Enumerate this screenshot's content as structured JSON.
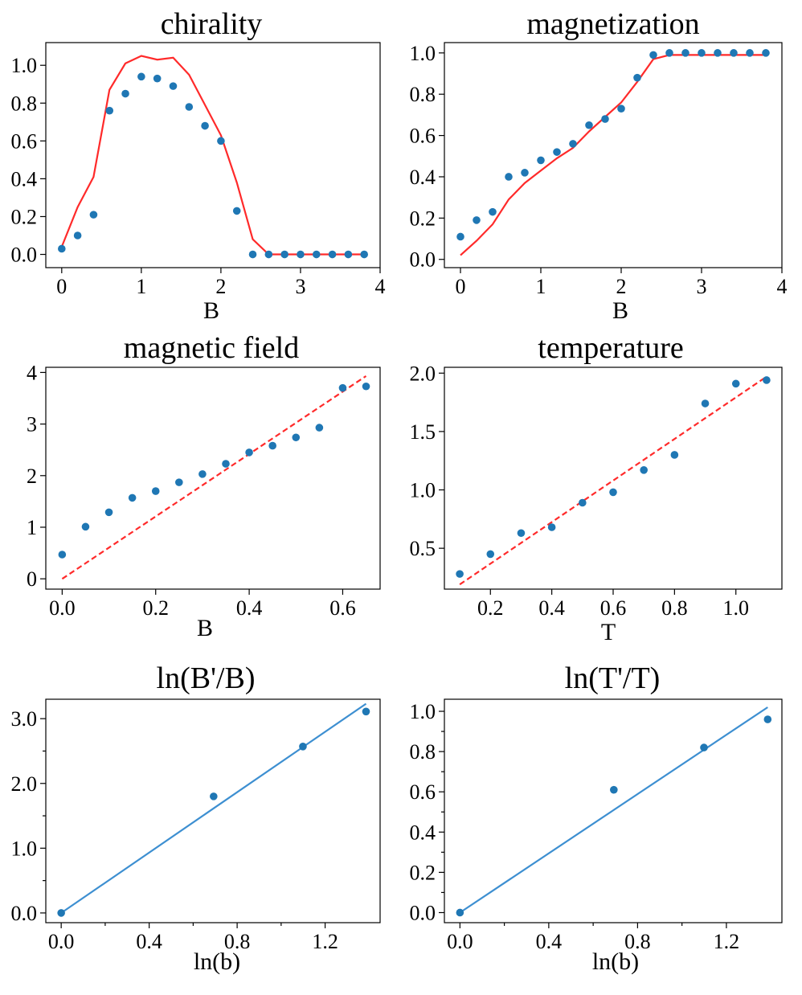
{
  "chart_data": [
    {
      "type": "scatter",
      "title": "chirality",
      "xlabel": "B",
      "ylabel": "",
      "xlim": [
        -0.2,
        4.0
      ],
      "ylim": [
        -0.07,
        1.12
      ],
      "xticks": [
        0,
        1,
        2,
        3,
        4
      ],
      "xtick_labels": [
        "0",
        "1",
        "2",
        "3",
        "4"
      ],
      "yticks": [
        0.0,
        0.2,
        0.4,
        0.6,
        0.8,
        1.0
      ],
      "ytick_labels": [
        "0.0",
        "0.2",
        "0.4",
        "0.6",
        "0.8",
        "1.0"
      ],
      "series": [
        {
          "name": "data",
          "kind": "points",
          "color": "#1f77b4",
          "x": [
            0,
            0.2,
            0.4,
            0.6,
            0.8,
            1.0,
            1.2,
            1.4,
            1.6,
            1.8,
            2.0,
            2.2,
            2.4,
            2.6,
            2.8,
            3.0,
            3.2,
            3.4,
            3.6,
            3.8
          ],
          "y": [
            0.03,
            0.1,
            0.21,
            0.76,
            0.85,
            0.94,
            0.93,
            0.89,
            0.78,
            0.68,
            0.6,
            0.23,
            0.0,
            0.0,
            0.0,
            0.0,
            0.0,
            0.0,
            0.0,
            0.0
          ]
        },
        {
          "name": "fit",
          "kind": "line",
          "color": "#ff2a2a",
          "x": [
            0,
            0.2,
            0.4,
            0.6,
            0.8,
            1.0,
            1.2,
            1.4,
            1.6,
            1.8,
            2.0,
            2.2,
            2.4,
            2.6,
            2.8,
            3.0,
            3.2,
            3.4,
            3.6,
            3.8
          ],
          "y": [
            0.04,
            0.25,
            0.41,
            0.87,
            1.01,
            1.05,
            1.03,
            1.04,
            0.95,
            0.79,
            0.63,
            0.38,
            0.08,
            0.0,
            0.0,
            0.0,
            0.0,
            0.0,
            0.0,
            0.0
          ]
        }
      ]
    },
    {
      "type": "scatter",
      "title": "magnetization",
      "xlabel": "B",
      "ylabel": "",
      "xlim": [
        -0.2,
        4.0
      ],
      "ylim": [
        -0.04,
        1.05
      ],
      "xticks": [
        0,
        1,
        2,
        3,
        4
      ],
      "xtick_labels": [
        "0",
        "1",
        "2",
        "3",
        "4"
      ],
      "yticks": [
        0.0,
        0.2,
        0.4,
        0.6,
        0.8,
        1.0
      ],
      "ytick_labels": [
        "0.0",
        "0.2",
        "0.4",
        "0.6",
        "0.8",
        "1.0"
      ],
      "series": [
        {
          "name": "data",
          "kind": "points",
          "color": "#1f77b4",
          "x": [
            0,
            0.2,
            0.4,
            0.6,
            0.8,
            1.0,
            1.2,
            1.4,
            1.6,
            1.8,
            2.0,
            2.2,
            2.4,
            2.6,
            2.8,
            3.0,
            3.2,
            3.4,
            3.6,
            3.8
          ],
          "y": [
            0.11,
            0.19,
            0.23,
            0.4,
            0.42,
            0.48,
            0.52,
            0.56,
            0.65,
            0.68,
            0.73,
            0.88,
            0.99,
            1.0,
            1.0,
            1.0,
            1.0,
            1.0,
            1.0,
            1.0
          ]
        },
        {
          "name": "fit",
          "kind": "line",
          "color": "#ff2a2a",
          "x": [
            0,
            0.2,
            0.4,
            0.6,
            0.8,
            1.0,
            1.2,
            1.4,
            1.6,
            1.8,
            2.0,
            2.2,
            2.4,
            2.6,
            2.8,
            3.0,
            3.2,
            3.4,
            3.6,
            3.8
          ],
          "y": [
            0.02,
            0.09,
            0.17,
            0.29,
            0.37,
            0.43,
            0.49,
            0.54,
            0.62,
            0.69,
            0.76,
            0.86,
            0.97,
            0.99,
            0.99,
            0.99,
            0.99,
            0.99,
            0.99,
            0.99
          ]
        }
      ]
    },
    {
      "type": "scatter",
      "title": "magnetic field",
      "xlabel": "B",
      "ylabel": "",
      "xlim": [
        -0.035,
        0.68
      ],
      "ylim": [
        -0.2,
        4.1
      ],
      "xticks": [
        0.0,
        0.2,
        0.4,
        0.6
      ],
      "xtick_labels": [
        "0.0",
        "0.2",
        "0.4",
        "0.6"
      ],
      "yticks": [
        0,
        1,
        2,
        3,
        4
      ],
      "ytick_labels": [
        "0",
        "1",
        "2",
        "3",
        "4"
      ],
      "series": [
        {
          "name": "data",
          "kind": "points",
          "color": "#1f77b4",
          "x": [
            0.0,
            0.05,
            0.1,
            0.15,
            0.2,
            0.25,
            0.3,
            0.35,
            0.4,
            0.45,
            0.5,
            0.55,
            0.6,
            0.65
          ],
          "y": [
            0.47,
            1.01,
            1.29,
            1.57,
            1.7,
            1.87,
            2.03,
            2.23,
            2.45,
            2.58,
            2.74,
            2.93,
            3.7,
            3.73
          ]
        },
        {
          "name": "fit",
          "kind": "dashed",
          "color": "#ff2a2a",
          "x": [
            0.0,
            0.65
          ],
          "y": [
            0.0,
            3.93
          ]
        }
      ]
    },
    {
      "type": "scatter",
      "title": "temperature",
      "xlabel": "T",
      "ylabel": "",
      "xlim": [
        0.05,
        1.15
      ],
      "ylim": [
        0.15,
        2.05
      ],
      "xticks": [
        0.2,
        0.4,
        0.6,
        0.8,
        1.0
      ],
      "xtick_labels": [
        "0.2",
        "0.4",
        "0.6",
        "0.8",
        "1.0"
      ],
      "yticks": [
        0.5,
        1.0,
        1.5,
        2.0
      ],
      "ytick_labels": [
        "0.5",
        "1.0",
        "1.5",
        "2.0"
      ],
      "series": [
        {
          "name": "data",
          "kind": "points",
          "color": "#1f77b4",
          "x": [
            0.1,
            0.2,
            0.3,
            0.4,
            0.5,
            0.6,
            0.7,
            0.8,
            0.9,
            1.0,
            1.1
          ],
          "y": [
            0.28,
            0.45,
            0.63,
            0.68,
            0.89,
            0.98,
            1.17,
            1.3,
            1.74,
            1.91,
            1.94
          ]
        },
        {
          "name": "fit",
          "kind": "dashed",
          "color": "#ff2a2a",
          "x": [
            0.1,
            1.1
          ],
          "y": [
            0.19,
            1.97
          ]
        }
      ]
    },
    {
      "type": "scatter",
      "title": "ln(B'/B)",
      "xlabel": "ln(b)",
      "ylabel": "",
      "xlim": [
        -0.07,
        1.45
      ],
      "ylim": [
        -0.15,
        3.3
      ],
      "xticks": [
        0.0,
        0.4,
        0.8,
        1.2
      ],
      "xtick_labels": [
        "0.0",
        "0.4",
        "0.8",
        "1.2"
      ],
      "xminor": [
        0.2,
        0.6,
        1.0
      ],
      "yticks": [
        0.0,
        1.0,
        2.0,
        3.0
      ],
      "ytick_labels": [
        "0.0",
        "1.0",
        "2.0",
        "3.0"
      ],
      "yminor": [
        0.5,
        1.5,
        2.5
      ],
      "series": [
        {
          "name": "data",
          "kind": "points",
          "color": "#1f77b4",
          "x": [
            0.0,
            0.693,
            1.099,
            1.386
          ],
          "y": [
            0.0,
            1.8,
            2.57,
            3.11
          ]
        },
        {
          "name": "fit",
          "kind": "line",
          "color": "#3d8fd1",
          "x": [
            0.0,
            1.386
          ],
          "y": [
            0.0,
            3.23
          ]
        }
      ]
    },
    {
      "type": "scatter",
      "title": "ln(T'/T)",
      "xlabel": "ln(b)",
      "ylabel": "",
      "xlim": [
        -0.07,
        1.45
      ],
      "ylim": [
        -0.05,
        1.06
      ],
      "xticks": [
        0.0,
        0.4,
        0.8,
        1.2
      ],
      "xtick_labels": [
        "0.0",
        "0.4",
        "0.8",
        "1.2"
      ],
      "xminor": [
        0.2,
        0.6,
        1.0
      ],
      "yticks": [
        0.0,
        0.2,
        0.4,
        0.6,
        0.8,
        1.0
      ],
      "ytick_labels": [
        "0.0",
        "0.2",
        "0.4",
        "0.6",
        "0.8",
        "1.0"
      ],
      "yminor": [
        0.1,
        0.3,
        0.5,
        0.7,
        0.9
      ],
      "series": [
        {
          "name": "data",
          "kind": "points",
          "color": "#1f77b4",
          "x": [
            0.0,
            0.693,
            1.099,
            1.386
          ],
          "y": [
            0.0,
            0.61,
            0.82,
            0.96
          ]
        },
        {
          "name": "fit",
          "kind": "line",
          "color": "#3d8fd1",
          "x": [
            0.0,
            1.386
          ],
          "y": [
            0.0,
            1.02
          ]
        }
      ]
    }
  ]
}
